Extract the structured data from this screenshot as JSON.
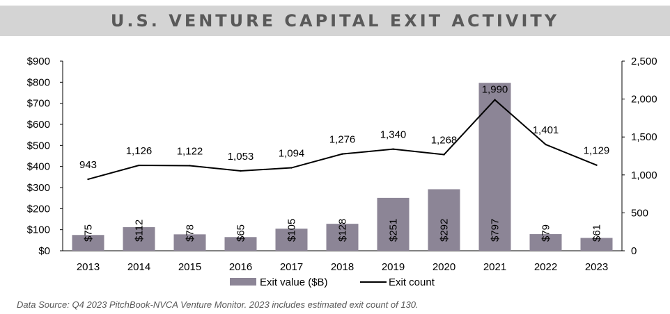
{
  "title": "U.S. VENTURE CAPITAL EXIT ACTIVITY",
  "source_note": "Data Source:  Q4 2023 PitchBook-NVCA Venture Monitor.  2023 includes estimated exit count of 130.",
  "colors": {
    "bar": "#8c8596",
    "line": "#000000",
    "text": "#000000",
    "title_bg": "#d4d4d4",
    "title_text": "#595959",
    "axis": "#000000"
  },
  "chart_data": {
    "type": "bar",
    "categories": [
      "2013",
      "2014",
      "2015",
      "2016",
      "2017",
      "2018",
      "2019",
      "2020",
      "2021",
      "2022",
      "2023"
    ],
    "series": [
      {
        "name": "Exit value ($B)",
        "type": "bar",
        "axis": "left",
        "values": [
          75,
          112,
          78,
          65,
          105,
          128,
          251,
          292,
          797,
          79,
          61
        ],
        "labels": [
          "$75",
          "$112",
          "$78",
          "$65",
          "$105",
          "$128",
          "$251",
          "$292",
          "$797",
          "$79",
          "$61"
        ]
      },
      {
        "name": "Exit count",
        "type": "line",
        "axis": "right",
        "values": [
          943,
          1126,
          1122,
          1053,
          1094,
          1276,
          1340,
          1268,
          1990,
          1401,
          1129
        ],
        "labels": [
          "943",
          "1,126",
          "1,122",
          "1,053",
          "1,094",
          "1,276",
          "1,340",
          "1,268",
          "1,990",
          "1,401",
          "1,129"
        ]
      }
    ],
    "y_left": {
      "min": 0,
      "max": 900,
      "ticks": [
        "$0",
        "$100",
        "$200",
        "$300",
        "$400",
        "$500",
        "$600",
        "$700",
        "$800",
        "$900"
      ]
    },
    "y_right": {
      "min": 0,
      "max": 2500,
      "ticks": [
        "0",
        "500",
        "1,000",
        "1,500",
        "2,000",
        "2,500"
      ]
    },
    "xlabel": "",
    "ylabel": "",
    "legend": {
      "position": "bottom",
      "items": [
        "Exit value ($B)",
        "Exit count"
      ]
    },
    "grid": false
  }
}
